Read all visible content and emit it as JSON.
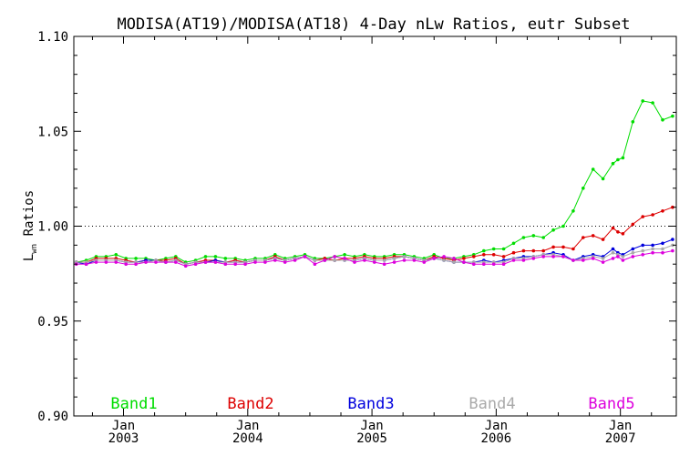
{
  "chart_data": {
    "type": "line",
    "title": "MODISA(AT19)/MODISA(AT18) 4-Day nLw Ratios, eutr Subset",
    "ylabel_main": "L",
    "ylabel_sub": "wn",
    "ylabel_rest": " Ratios",
    "ylim": [
      0.9,
      1.1
    ],
    "xlim": [
      2002.6,
      2007.45
    ],
    "y_ticks": [
      "0.90",
      "0.95",
      "1.00",
      "1.05",
      "1.10"
    ],
    "x_month_labels": [
      "Jan",
      "Jan",
      "Jan",
      "Jan",
      "Jan"
    ],
    "x_year_labels": [
      "2003",
      "2004",
      "2005",
      "2006",
      "2007"
    ],
    "reference_line": 1.0,
    "series": [
      {
        "name": "Band1",
        "color": "#00dd00",
        "x": [
          2002.62,
          2002.7,
          2002.78,
          2002.86,
          2002.94,
          2003.02,
          2003.1,
          2003.18,
          2003.26,
          2003.34,
          2003.42,
          2003.5,
          2003.58,
          2003.66,
          2003.74,
          2003.82,
          2003.9,
          2003.98,
          2004.06,
          2004.14,
          2004.22,
          2004.3,
          2004.38,
          2004.46,
          2004.54,
          2004.62,
          2004.7,
          2004.78,
          2004.86,
          2004.94,
          2005.02,
          2005.1,
          2005.18,
          2005.26,
          2005.34,
          2005.42,
          2005.5,
          2005.58,
          2005.66,
          2005.74,
          2005.82,
          2005.9,
          2005.98,
          2006.06,
          2006.14,
          2006.22,
          2006.3,
          2006.38,
          2006.46,
          2006.54,
          2006.62,
          2006.7,
          2006.78,
          2006.86,
          2006.94,
          2006.98,
          2007.02,
          2007.1,
          2007.18,
          2007.26,
          2007.34,
          2007.42
        ],
        "values": [
          0.981,
          0.982,
          0.984,
          0.984,
          0.985,
          0.983,
          0.983,
          0.983,
          0.982,
          0.983,
          0.984,
          0.981,
          0.982,
          0.984,
          0.984,
          0.983,
          0.983,
          0.982,
          0.983,
          0.983,
          0.985,
          0.983,
          0.984,
          0.985,
          0.983,
          0.983,
          0.984,
          0.985,
          0.984,
          0.985,
          0.984,
          0.984,
          0.985,
          0.985,
          0.984,
          0.983,
          0.985,
          0.983,
          0.983,
          0.984,
          0.985,
          0.987,
          0.988,
          0.988,
          0.991,
          0.994,
          0.995,
          0.994,
          0.998,
          1.0,
          1.008,
          1.02,
          1.03,
          1.025,
          1.033,
          1.035,
          1.036,
          1.055,
          1.066,
          1.065,
          1.056,
          1.058
        ]
      },
      {
        "name": "Band2",
        "color": "#dd0000",
        "x": [
          2002.62,
          2002.7,
          2002.78,
          2002.86,
          2002.94,
          2003.02,
          2003.1,
          2003.18,
          2003.26,
          2003.34,
          2003.42,
          2003.5,
          2003.58,
          2003.66,
          2003.74,
          2003.82,
          2003.9,
          2003.98,
          2004.06,
          2004.14,
          2004.22,
          2004.3,
          2004.38,
          2004.46,
          2004.54,
          2004.62,
          2004.7,
          2004.78,
          2004.86,
          2004.94,
          2005.02,
          2005.1,
          2005.18,
          2005.26,
          2005.34,
          2005.42,
          2005.5,
          2005.58,
          2005.66,
          2005.74,
          2005.82,
          2005.9,
          2005.98,
          2006.06,
          2006.14,
          2006.22,
          2006.3,
          2006.38,
          2006.46,
          2006.54,
          2006.62,
          2006.7,
          2006.78,
          2006.86,
          2006.94,
          2006.98,
          2007.02,
          2007.1,
          2007.18,
          2007.26,
          2007.34,
          2007.42
        ],
        "values": [
          0.981,
          0.981,
          0.983,
          0.983,
          0.983,
          0.982,
          0.981,
          0.982,
          0.982,
          0.982,
          0.983,
          0.98,
          0.981,
          0.982,
          0.982,
          0.981,
          0.982,
          0.981,
          0.982,
          0.982,
          0.984,
          0.982,
          0.983,
          0.984,
          0.982,
          0.983,
          0.982,
          0.983,
          0.983,
          0.984,
          0.983,
          0.983,
          0.984,
          0.984,
          0.983,
          0.982,
          0.984,
          0.983,
          0.982,
          0.983,
          0.984,
          0.985,
          0.985,
          0.984,
          0.986,
          0.987,
          0.987,
          0.987,
          0.989,
          0.989,
          0.988,
          0.994,
          0.995,
          0.993,
          0.999,
          0.997,
          0.996,
          1.001,
          1.005,
          1.006,
          1.008,
          1.01
        ]
      },
      {
        "name": "Band3",
        "color": "#0000dd",
        "x": [
          2002.62,
          2002.7,
          2002.78,
          2002.86,
          2002.94,
          2003.02,
          2003.1,
          2003.18,
          2003.26,
          2003.34,
          2003.42,
          2003.5,
          2003.58,
          2003.66,
          2003.74,
          2003.82,
          2003.9,
          2003.98,
          2004.06,
          2004.14,
          2004.22,
          2004.3,
          2004.38,
          2004.46,
          2004.54,
          2004.62,
          2004.7,
          2004.78,
          2004.86,
          2004.94,
          2005.02,
          2005.1,
          2005.18,
          2005.26,
          2005.34,
          2005.42,
          2005.5,
          2005.58,
          2005.66,
          2005.74,
          2005.82,
          2005.9,
          2005.98,
          2006.06,
          2006.14,
          2006.22,
          2006.3,
          2006.38,
          2006.46,
          2006.54,
          2006.62,
          2006.7,
          2006.78,
          2006.86,
          2006.94,
          2006.98,
          2007.02,
          2007.1,
          2007.18,
          2007.26,
          2007.34,
          2007.42
        ],
        "values": [
          0.981,
          0.98,
          0.982,
          0.982,
          0.982,
          0.981,
          0.981,
          0.982,
          0.982,
          0.981,
          0.982,
          0.98,
          0.981,
          0.981,
          0.982,
          0.981,
          0.981,
          0.981,
          0.982,
          0.982,
          0.983,
          0.982,
          0.983,
          0.984,
          0.982,
          0.982,
          0.982,
          0.982,
          0.982,
          0.983,
          0.982,
          0.982,
          0.983,
          0.984,
          0.983,
          0.982,
          0.983,
          0.982,
          0.981,
          0.981,
          0.981,
          0.982,
          0.981,
          0.982,
          0.983,
          0.984,
          0.984,
          0.985,
          0.986,
          0.985,
          0.982,
          0.984,
          0.985,
          0.984,
          0.988,
          0.986,
          0.985,
          0.988,
          0.99,
          0.99,
          0.991,
          0.993
        ]
      },
      {
        "name": "Band4",
        "color": "#aaaaaa",
        "x": [
          2002.62,
          2002.7,
          2002.78,
          2002.86,
          2002.94,
          2003.02,
          2003.1,
          2003.18,
          2003.26,
          2003.34,
          2003.42,
          2003.5,
          2003.58,
          2003.66,
          2003.74,
          2003.82,
          2003.9,
          2003.98,
          2004.06,
          2004.14,
          2004.22,
          2004.3,
          2004.38,
          2004.46,
          2004.54,
          2004.62,
          2004.7,
          2004.78,
          2004.86,
          2004.94,
          2005.02,
          2005.1,
          2005.18,
          2005.26,
          2005.34,
          2005.42,
          2005.5,
          2005.58,
          2005.66,
          2005.74,
          2005.82,
          2005.9,
          2005.98,
          2006.06,
          2006.14,
          2006.22,
          2006.3,
          2006.38,
          2006.46,
          2006.54,
          2006.62,
          2006.7,
          2006.78,
          2006.86,
          2006.94,
          2006.98,
          2007.02,
          2007.1,
          2007.18,
          2007.26,
          2007.34,
          2007.42
        ],
        "values": [
          0.981,
          0.981,
          0.982,
          0.982,
          0.982,
          0.981,
          0.981,
          0.981,
          0.982,
          0.981,
          0.982,
          0.98,
          0.981,
          0.981,
          0.981,
          0.981,
          0.981,
          0.981,
          0.982,
          0.982,
          0.983,
          0.982,
          0.983,
          0.984,
          0.982,
          0.982,
          0.982,
          0.982,
          0.982,
          0.983,
          0.982,
          0.982,
          0.983,
          0.984,
          0.983,
          0.982,
          0.983,
          0.982,
          0.981,
          0.981,
          0.981,
          0.981,
          0.981,
          0.981,
          0.983,
          0.983,
          0.984,
          0.985,
          0.985,
          0.984,
          0.982,
          0.983,
          0.984,
          0.983,
          0.986,
          0.985,
          0.984,
          0.986,
          0.987,
          0.988,
          0.988,
          0.99
        ]
      },
      {
        "name": "Band5",
        "color": "#dd00dd",
        "x": [
          2002.62,
          2002.7,
          2002.78,
          2002.86,
          2002.94,
          2003.02,
          2003.1,
          2003.18,
          2003.26,
          2003.34,
          2003.42,
          2003.5,
          2003.58,
          2003.66,
          2003.74,
          2003.82,
          2003.9,
          2003.98,
          2004.06,
          2004.14,
          2004.22,
          2004.3,
          2004.38,
          2004.46,
          2004.54,
          2004.62,
          2004.7,
          2004.78,
          2004.86,
          2004.94,
          2005.02,
          2005.1,
          2005.18,
          2005.26,
          2005.34,
          2005.42,
          2005.5,
          2005.58,
          2005.66,
          2005.74,
          2005.82,
          2005.9,
          2005.98,
          2006.06,
          2006.14,
          2006.22,
          2006.3,
          2006.38,
          2006.46,
          2006.54,
          2006.62,
          2006.7,
          2006.78,
          2006.86,
          2006.94,
          2006.98,
          2007.02,
          2007.1,
          2007.18,
          2007.26,
          2007.34,
          2007.42
        ],
        "values": [
          0.98,
          0.98,
          0.981,
          0.981,
          0.981,
          0.98,
          0.98,
          0.981,
          0.981,
          0.981,
          0.981,
          0.979,
          0.98,
          0.981,
          0.981,
          0.98,
          0.98,
          0.98,
          0.981,
          0.981,
          0.982,
          0.981,
          0.982,
          0.984,
          0.98,
          0.982,
          0.984,
          0.983,
          0.981,
          0.982,
          0.981,
          0.98,
          0.981,
          0.982,
          0.982,
          0.981,
          0.983,
          0.984,
          0.983,
          0.981,
          0.98,
          0.98,
          0.98,
          0.98,
          0.982,
          0.982,
          0.983,
          0.984,
          0.984,
          0.984,
          0.982,
          0.982,
          0.983,
          0.981,
          0.983,
          0.984,
          0.982,
          0.984,
          0.985,
          0.986,
          0.986,
          0.987
        ]
      }
    ]
  }
}
